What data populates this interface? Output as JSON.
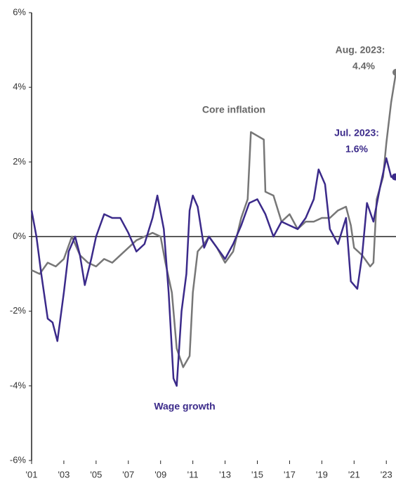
{
  "chart_data": {
    "type": "line",
    "annotations": [
      "Core inflation",
      "Wage growth",
      "Aug. 2023:",
      "4.4%",
      "Jul. 2023:",
      "1.6%"
    ],
    "xlim": [
      2001,
      2023.6
    ],
    "xticks": [
      {
        "value": 2001,
        "label": "'01"
      },
      {
        "value": 2003,
        "label": "'03"
      },
      {
        "value": 2005,
        "label": "'05"
      },
      {
        "value": 2007,
        "label": "'07"
      },
      {
        "value": 2009,
        "label": "'09"
      },
      {
        "value": 2011,
        "label": "'11"
      },
      {
        "value": 2013,
        "label": "'13"
      },
      {
        "value": 2015,
        "label": "'15"
      },
      {
        "value": 2017,
        "label": "'17"
      },
      {
        "value": 2019,
        "label": "'19"
      },
      {
        "value": 2021,
        "label": "'21"
      },
      {
        "value": 2023,
        "label": "'23"
      }
    ],
    "ylim": [
      -6,
      6
    ],
    "yticks": [
      {
        "value": -6,
        "label": "-6%"
      },
      {
        "value": -4,
        "label": "-4%"
      },
      {
        "value": -2,
        "label": "-2%"
      },
      {
        "value": 0,
        "label": "0%"
      },
      {
        "value": 2,
        "label": "2%"
      },
      {
        "value": 4,
        "label": "4%"
      },
      {
        "value": 6,
        "label": "6%"
      }
    ],
    "series": [
      {
        "name": "Wage growth",
        "color": "#3b2a8a",
        "x": [
          2001,
          2001.3,
          2001.6,
          2002,
          2002.3,
          2002.6,
          2003,
          2003.3,
          2003.7,
          2004,
          2004.3,
          2004.7,
          2005,
          2005.5,
          2006,
          2006.5,
          2007,
          2007.5,
          2008,
          2008.5,
          2008.8,
          2009.2,
          2009.5,
          2009.8,
          2010,
          2010.3,
          2010.6,
          2010.8,
          2011,
          2011.3,
          2011.7,
          2012,
          2012.5,
          2013,
          2013.5,
          2014,
          2014.5,
          2015,
          2015.5,
          2016,
          2016.5,
          2017,
          2017.5,
          2018,
          2018.5,
          2018.8,
          2019.2,
          2019.5,
          2020,
          2020.5,
          2020.8,
          2021.2,
          2021.5,
          2021.8,
          2022.2,
          2022.6,
          2023,
          2023.3,
          2023.55
        ],
        "values": [
          0.7,
          0,
          -1.0,
          -2.2,
          -2.3,
          -2.8,
          -1.5,
          -0.4,
          0.0,
          -0.5,
          -1.3,
          -0.6,
          0.0,
          0.6,
          0.5,
          0.5,
          0.1,
          -0.4,
          -0.2,
          0.5,
          1.1,
          0.2,
          -1.5,
          -3.8,
          -4.0,
          -2.0,
          -1.0,
          0.7,
          1.1,
          0.8,
          -0.3,
          0.0,
          -0.3,
          -0.6,
          -0.2,
          0.3,
          0.9,
          1.0,
          0.6,
          0.0,
          0.4,
          0.3,
          0.2,
          0.5,
          1.0,
          1.8,
          1.4,
          0.2,
          -0.2,
          0.5,
          -1.2,
          -1.4,
          -0.5,
          0.9,
          0.4,
          1.3,
          2.1,
          1.6,
          1.6
        ]
      },
      {
        "name": "Core inflation",
        "color": "#777777",
        "x": [
          2001,
          2001.5,
          2002,
          2002.5,
          2003,
          2003.5,
          2004,
          2004.5,
          2005,
          2005.5,
          2006,
          2006.5,
          2007,
          2007.5,
          2008,
          2008.5,
          2009,
          2009.3,
          2009.7,
          2010,
          2010.4,
          2010.8,
          2011,
          2011.3,
          2011.7,
          2012,
          2012.5,
          2013,
          2013.5,
          2014,
          2014.4,
          2014.6,
          2015,
          2015.4,
          2015.5,
          2016,
          2016.5,
          2017,
          2017.5,
          2018,
          2018.5,
          2019,
          2019.5,
          2020,
          2020.5,
          2020.8,
          2021,
          2021.5,
          2022,
          2022.2,
          2022.4,
          2022.8,
          2023,
          2023.3,
          2023.6
        ],
        "values": [
          -0.9,
          -1.0,
          -0.7,
          -0.8,
          -0.6,
          0.0,
          -0.5,
          -0.7,
          -0.8,
          -0.6,
          -0.7,
          -0.5,
          -0.3,
          -0.1,
          0.0,
          0.1,
          0.0,
          -0.7,
          -1.5,
          -3.0,
          -3.5,
          -3.2,
          -1.5,
          -0.4,
          -0.2,
          0.0,
          -0.3,
          -0.7,
          -0.4,
          0.5,
          1.0,
          2.8,
          2.7,
          2.6,
          1.2,
          1.1,
          0.4,
          0.6,
          0.2,
          0.4,
          0.4,
          0.5,
          0.5,
          0.7,
          0.8,
          0.3,
          -0.3,
          -0.5,
          -0.8,
          -0.7,
          1.0,
          1.6,
          2.5,
          3.6,
          4.4
        ]
      }
    ]
  }
}
